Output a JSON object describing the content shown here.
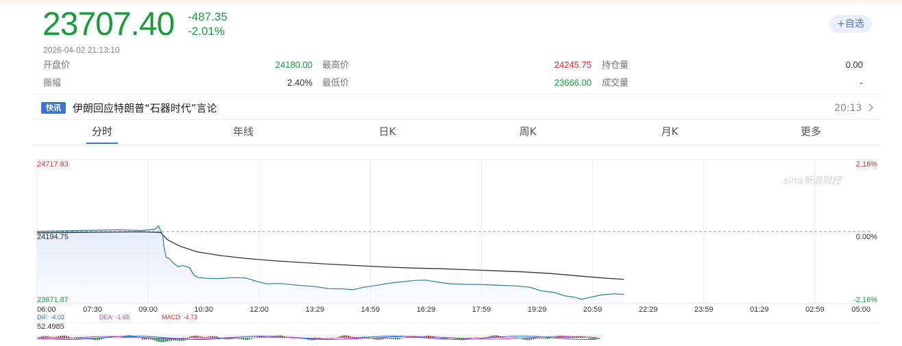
{
  "quote": {
    "price": "23707.40",
    "change": "-487.35",
    "change_pct": "-2.01%",
    "timestamp": "2026-04-02   21:13:10",
    "add_label": "+自选",
    "color_down": "#1a9c3e",
    "color_up": "#e3302e"
  },
  "stats": {
    "open_label": "开盘价",
    "open": "24180.00",
    "high_label": "最高价",
    "high": "24245.75",
    "oi_label": "持仓量",
    "oi": "0.00",
    "amp_label": "振幅",
    "amp": "2.40%",
    "low_label": "最低价",
    "low": "23666.00",
    "vol_label": "成交量",
    "vol": "-"
  },
  "news": {
    "badge": "快讯",
    "title": "伊朗回应特朗普“石器时代”言论",
    "time": "20:13",
    "chevron_icon": "chevron-right-icon"
  },
  "tabs": [
    "分时",
    "年线",
    "日K",
    "周K",
    "月K",
    "更多"
  ],
  "active_tab": 0,
  "chart": {
    "max_price": "24717.63",
    "mid_price": "24194.75",
    "min_price": "23671.87",
    "max_pct": "2.16%",
    "mid_pct": "0.00%",
    "min_pct": "-2.16%",
    "x_labels": [
      "06:00",
      "07:30",
      "09:00",
      "10:30",
      "12:00",
      "13:29",
      "14:59",
      "16:29",
      "17:59",
      "19:29",
      "20:59",
      "22:29",
      "23:59",
      "01:29",
      "02:59",
      "05:00"
    ],
    "macd": {
      "dif": "DIF: -4.02",
      "dea": "DEA: -1.66",
      "macd": "MACD: -4.73",
      "value": "52.4985"
    },
    "watermark": "sina新浪财经"
  },
  "chart_data": {
    "type": "line",
    "ylim": [
      23671.87,
      24717.63
    ],
    "baseline": 24194.75,
    "price_series": [
      [
        0,
        24196
      ],
      [
        40,
        24200
      ],
      [
        80,
        24204
      ],
      [
        120,
        24208
      ],
      [
        150,
        24202
      ],
      [
        170,
        24212
      ],
      [
        175,
        24236
      ],
      [
        178,
        24202
      ],
      [
        181,
        24172
      ],
      [
        183,
        24080
      ],
      [
        186,
        24008
      ],
      [
        190,
        24000
      ],
      [
        196,
        23968
      ],
      [
        203,
        23940
      ],
      [
        210,
        23948
      ],
      [
        220,
        23932
      ],
      [
        226,
        23878
      ],
      [
        232,
        23860
      ],
      [
        244,
        23855
      ],
      [
        262,
        23853
      ],
      [
        282,
        23860
      ],
      [
        300,
        23858
      ],
      [
        315,
        23835
      ],
      [
        330,
        23815
      ],
      [
        350,
        23818
      ],
      [
        375,
        23805
      ],
      [
        400,
        23795
      ],
      [
        420,
        23780
      ],
      [
        440,
        23778
      ],
      [
        455,
        23772
      ],
      [
        470,
        23790
      ],
      [
        490,
        23805
      ],
      [
        510,
        23822
      ],
      [
        530,
        23832
      ],
      [
        545,
        23840
      ],
      [
        560,
        23842
      ],
      [
        578,
        23826
      ],
      [
        595,
        23816
      ],
      [
        615,
        23812
      ],
      [
        640,
        23810
      ],
      [
        660,
        23806
      ],
      [
        690,
        23800
      ],
      [
        710,
        23790
      ],
      [
        725,
        23765
      ],
      [
        745,
        23752
      ],
      [
        760,
        23727
      ],
      [
        772,
        23720
      ],
      [
        784,
        23703
      ],
      [
        796,
        23716
      ],
      [
        812,
        23734
      ],
      [
        830,
        23742
      ],
      [
        845,
        23738
      ]
    ],
    "avg_series": [
      [
        0,
        24186
      ],
      [
        80,
        24190
      ],
      [
        150,
        24193
      ],
      [
        178,
        24188
      ],
      [
        188,
        24135
      ],
      [
        205,
        24090
      ],
      [
        230,
        24048
      ],
      [
        265,
        24020
      ],
      [
        300,
        24000
      ],
      [
        340,
        23983
      ],
      [
        380,
        23970
      ],
      [
        420,
        23958
      ],
      [
        460,
        23948
      ],
      [
        500,
        23938
      ],
      [
        540,
        23930
      ],
      [
        580,
        23925
      ],
      [
        620,
        23918
      ],
      [
        660,
        23910
      ],
      [
        700,
        23902
      ],
      [
        740,
        23890
      ],
      [
        780,
        23872
      ],
      [
        820,
        23855
      ],
      [
        845,
        23848
      ]
    ]
  }
}
